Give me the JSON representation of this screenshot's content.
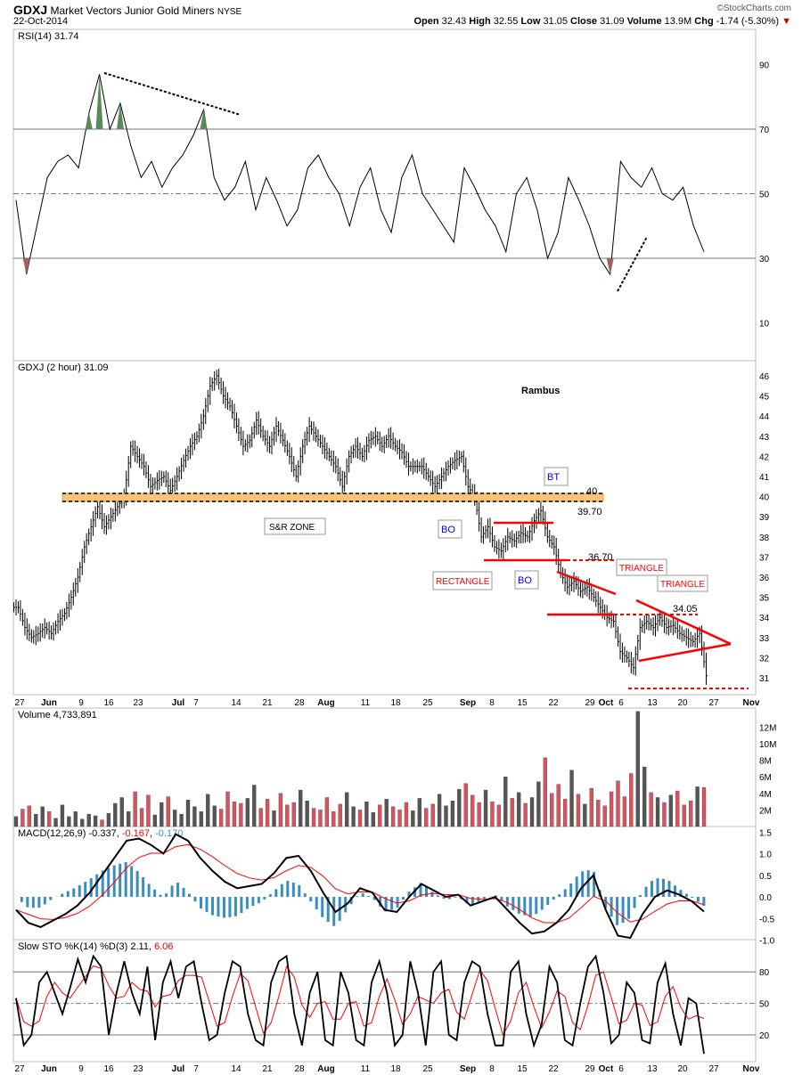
{
  "header": {
    "symbol": "GDXJ",
    "name": "Market Vectors Junior Gold Miners",
    "exchange": "NYSE",
    "date": "22-Oct-2014",
    "brand": "©StockCharts.com",
    "open_label": "Open",
    "open": "32.43",
    "high_label": "High",
    "high": "32.55",
    "low_label": "Low",
    "low": "31.05",
    "close_label": "Close",
    "close": "31.09",
    "volume_label": "Volume",
    "volume": "13.9M",
    "chg_label": "Chg",
    "chg": "-1.74 (-5.30%)"
  },
  "colors": {
    "up": "#555555",
    "down": "#d9535f",
    "macd_signal": "#ff0000",
    "hist": "#3a8dbf",
    "zone": "#f7c27a",
    "annot": "#ff0000"
  },
  "chart_data": [
    {
      "type": "line",
      "title": "RSI(14) 31.74",
      "ylim": [
        0,
        100
      ],
      "yticks": [
        "90",
        "70",
        "50",
        "30",
        "10"
      ],
      "ytick_values": [
        90,
        70,
        50,
        30,
        10
      ],
      "values": [
        48,
        25,
        40,
        55,
        60,
        62,
        58,
        75,
        87,
        70,
        78,
        65,
        55,
        60,
        52,
        58,
        62,
        68,
        76,
        55,
        48,
        52,
        60,
        45,
        55,
        48,
        40,
        45,
        58,
        62,
        55,
        50,
        40,
        52,
        58,
        45,
        38,
        55,
        62,
        50,
        45,
        40,
        35,
        58,
        52,
        45,
        40,
        32,
        50,
        55,
        45,
        30,
        38,
        55,
        48,
        40,
        30,
        25,
        60,
        55,
        52,
        58,
        50,
        48,
        52,
        40,
        32
      ]
    },
    {
      "type": "ohlc",
      "title": "GDXJ (2 hour) 31.09",
      "watermark": "Rambus",
      "ylim": [
        30.5,
        46.8
      ],
      "yticks": [
        "46",
        "45",
        "44",
        "43",
        "42",
        "41",
        "40",
        "39",
        "38",
        "37",
        "36",
        "35",
        "34",
        "33",
        "32",
        "31"
      ],
      "ytick_values": [
        46,
        45,
        44,
        43,
        42,
        41,
        40,
        39,
        38,
        37,
        36,
        35,
        34,
        33,
        32,
        31
      ],
      "closes": [
        34.5,
        33.5,
        33,
        33.2,
        33.5,
        33.2,
        33.8,
        34.2,
        35,
        36,
        37.5,
        38.5,
        39.5,
        38.5,
        39,
        39.5,
        40,
        42.5,
        42,
        41.5,
        40.5,
        40.8,
        41,
        40.3,
        41,
        41.8,
        42.5,
        43,
        44,
        45.5,
        46,
        45,
        44.5,
        43.5,
        42.5,
        42.8,
        43.8,
        43,
        42.5,
        43.5,
        42.8,
        42,
        41,
        42.5,
        43.5,
        43,
        42.5,
        42,
        41.5,
        40.5,
        42,
        42.5,
        42,
        42.8,
        43,
        42.5,
        43,
        42.5,
        42.2,
        41.5,
        41.5,
        41.5,
        41,
        40.5,
        41,
        41.5,
        41.8,
        42,
        40.5,
        40,
        38,
        38.5,
        37.5,
        37.3,
        38,
        37.8,
        38.2,
        38,
        38.8,
        39.3,
        38,
        37.5,
        36.2,
        35.5,
        35.8,
        35.3,
        35.5,
        35,
        34.5,
        34,
        33.8,
        32.3,
        32,
        31.5,
        33.5,
        33.8,
        33.5,
        34,
        33.5,
        33.6,
        33.2,
        33,
        32.8,
        33.2,
        31.1
      ],
      "annotations": {
        "sr_zone": "S&R ZONE",
        "bt": "BT",
        "bo1": "BO",
        "bo2": "BO",
        "rectangle": "RECTANGLE",
        "triangle1": "TRIANGLE",
        "triangle2": "TRIANGLE",
        "level_40": "40",
        "level_3970": "39.70",
        "level_3670": "36.70",
        "level_3405": "34.05"
      }
    },
    {
      "type": "bar",
      "title": "Volume 4,733,891",
      "yticks": [
        "12M",
        "10M",
        "8M",
        "6M",
        "4M",
        "2M"
      ],
      "ytick_values": [
        12,
        10,
        8,
        6,
        4,
        2
      ],
      "values": [
        1.2,
        2.1,
        2.5,
        1.5,
        2.4,
        1.8,
        1.0,
        2.6,
        1.2,
        1.8,
        0.9,
        1.5,
        1.3,
        0.8,
        1.6,
        2.8,
        3.5,
        1.8,
        4.2,
        2.2,
        3.8,
        1.4,
        2.9,
        3.6,
        2.0,
        1.5,
        3.2,
        2.4,
        1.8,
        3.9,
        2.5,
        2.1,
        4.2,
        3.0,
        2.8,
        3.4,
        5.0,
        2.2,
        3.3,
        1.9,
        4.0,
        2.6,
        2.9,
        4.4,
        3.1,
        2.2,
        2.0,
        3.5,
        1.8,
        2.7,
        4.1,
        2.4,
        2.0,
        3.0,
        1.7,
        2.6,
        3.3,
        2.4,
        2.0,
        2.9,
        1.9,
        3.4,
        2.2,
        2.7,
        3.9,
        2.5,
        3.1,
        4.5,
        5.2,
        3.8,
        2.9,
        4.4,
        3.0,
        2.6,
        6.0,
        3.4,
        4.1,
        2.8,
        3.5,
        5.4,
        8.3,
        4.0,
        5.1,
        3.3,
        6.8,
        3.9,
        2.7,
        4.6,
        3.2,
        2.5,
        4.2,
        5.5,
        3.6,
        6.4,
        13.9,
        7.2,
        4.1,
        3.5,
        2.9,
        3.8,
        4.3,
        2.6,
        3.1,
        4.8,
        4.7
      ],
      "ylim": [
        0,
        14
      ]
    },
    {
      "type": "line",
      "title": "MACD(12,26,9)",
      "values_text": [
        "-0.337",
        "-0.167",
        "-0.170"
      ],
      "ylim": [
        -1.1,
        1.55
      ],
      "yticks": [
        "1.5",
        "1.0",
        "0.5",
        "0.0",
        "-0.5",
        "-1.0"
      ],
      "ytick_values": [
        1.5,
        1.0,
        0.5,
        0.0,
        -0.5,
        -1.0
      ],
      "macd": [
        -0.3,
        -0.6,
        -0.7,
        -0.55,
        -0.4,
        -0.2,
        0.1,
        0.5,
        0.9,
        1.3,
        1.35,
        1.2,
        1.0,
        1.45,
        1.3,
        0.9,
        0.6,
        0.35,
        0.2,
        0.25,
        0.3,
        0.55,
        0.9,
        0.95,
        0.6,
        0.1,
        -0.35,
        -0.15,
        0.2,
        0.1,
        -0.3,
        -0.35,
        0,
        0.3,
        0.15,
        0,
        0.05,
        -0.2,
        -0.1,
        0,
        -0.3,
        -0.6,
        -0.85,
        -0.8,
        -0.6,
        -0.3,
        0.2,
        0.5,
        -0.3,
        -0.9,
        -0.95,
        -0.4,
        0.0,
        0.15,
        0.05,
        -0.1,
        -0.34
      ]
    },
    {
      "type": "line",
      "title": "Slow STO %K(14) %D(3)",
      "values_text": [
        "2.11",
        "6.06"
      ],
      "ylim": [
        0,
        100
      ],
      "yticks": [
        "80",
        "50",
        "20"
      ],
      "ytick_values": [
        80,
        50,
        20
      ],
      "k": [
        55,
        10,
        20,
        70,
        80,
        60,
        40,
        65,
        92,
        70,
        95,
        85,
        20,
        60,
        90,
        60,
        40,
        85,
        15,
        70,
        90,
        55,
        85,
        90,
        50,
        15,
        20,
        60,
        90,
        85,
        40,
        15,
        10,
        70,
        90,
        95,
        40,
        10,
        60,
        80,
        15,
        10,
        80,
        60,
        15,
        10,
        70,
        90,
        60,
        10,
        20,
        90,
        60,
        10,
        80,
        90,
        20,
        15,
        70,
        90,
        85,
        40,
        10,
        10,
        80,
        90,
        40,
        10,
        30,
        85,
        70,
        15,
        10,
        50,
        85,
        95,
        60,
        12,
        20,
        70,
        60,
        15,
        12,
        70,
        88,
        40,
        10,
        55,
        50,
        2
      ]
    }
  ],
  "x_axis": [
    "27",
    "Jun",
    "9",
    "16",
    "23",
    "Jul",
    "7",
    "14",
    "21",
    "28",
    "Aug",
    "11",
    "18",
    "25",
    "Sep",
    "8",
    "15",
    "22",
    "29",
    "Oct",
    "6",
    "13",
    "20",
    "27",
    "Nov"
  ]
}
